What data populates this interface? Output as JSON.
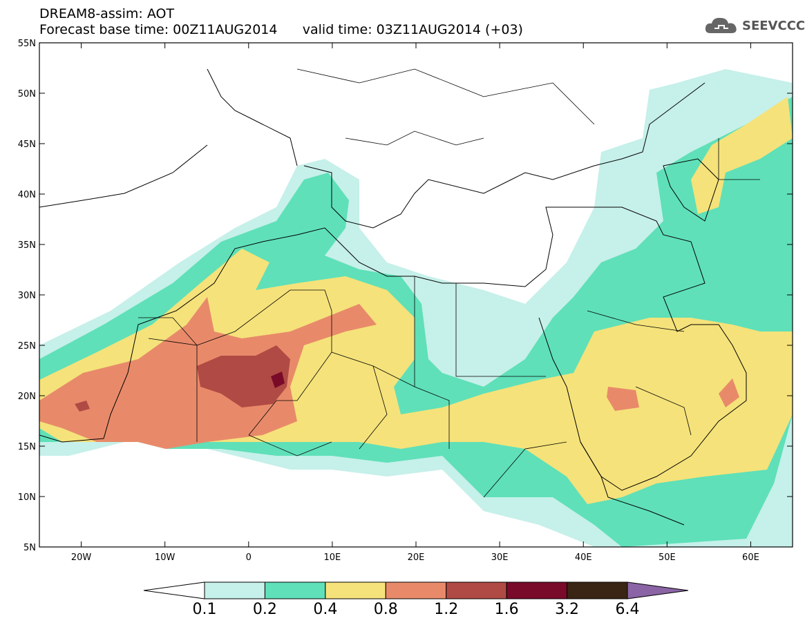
{
  "header": {
    "title_line1": "DREAM8-assim: AOT",
    "forecast_label": "Forecast base time: 00Z11AUG2014",
    "valid_label": "valid time: 03Z11AUG2014 (+03)",
    "logo_text": "SEEVCCC"
  },
  "map": {
    "lon_range": [
      -25,
      65
    ],
    "lat_range": [
      5,
      55
    ],
    "lon_ticks": [
      {
        "value": -20,
        "label": "20W"
      },
      {
        "value": -10,
        "label": "10W"
      },
      {
        "value": 0,
        "label": "0"
      },
      {
        "value": 10,
        "label": "10E"
      },
      {
        "value": 20,
        "label": "20E"
      },
      {
        "value": 30,
        "label": "30E"
      },
      {
        "value": 40,
        "label": "40E"
      },
      {
        "value": 50,
        "label": "50E"
      },
      {
        "value": 60,
        "label": "60E"
      }
    ],
    "lat_ticks": [
      {
        "value": 55,
        "label": "55N"
      },
      {
        "value": 50,
        "label": "50N"
      },
      {
        "value": 45,
        "label": "45N"
      },
      {
        "value": 40,
        "label": "40N"
      },
      {
        "value": 35,
        "label": "35N"
      },
      {
        "value": 30,
        "label": "30N"
      },
      {
        "value": 25,
        "label": "25N"
      },
      {
        "value": 20,
        "label": "20N"
      },
      {
        "value": 15,
        "label": "15N"
      },
      {
        "value": 10,
        "label": "10N"
      },
      {
        "value": 5,
        "label": "5N"
      }
    ]
  },
  "colorbar": {
    "colors": [
      "#ffffff",
      "#c6f0ea",
      "#5fe0b8",
      "#f5e27a",
      "#e88a6a",
      "#b04a44",
      "#7a0a2a",
      "#3a2414",
      "#8a64a4"
    ],
    "labels": [
      "0.1",
      "0.2",
      "0.4",
      "0.8",
      "1.2",
      "1.6",
      "3.2",
      "6.4"
    ]
  }
}
